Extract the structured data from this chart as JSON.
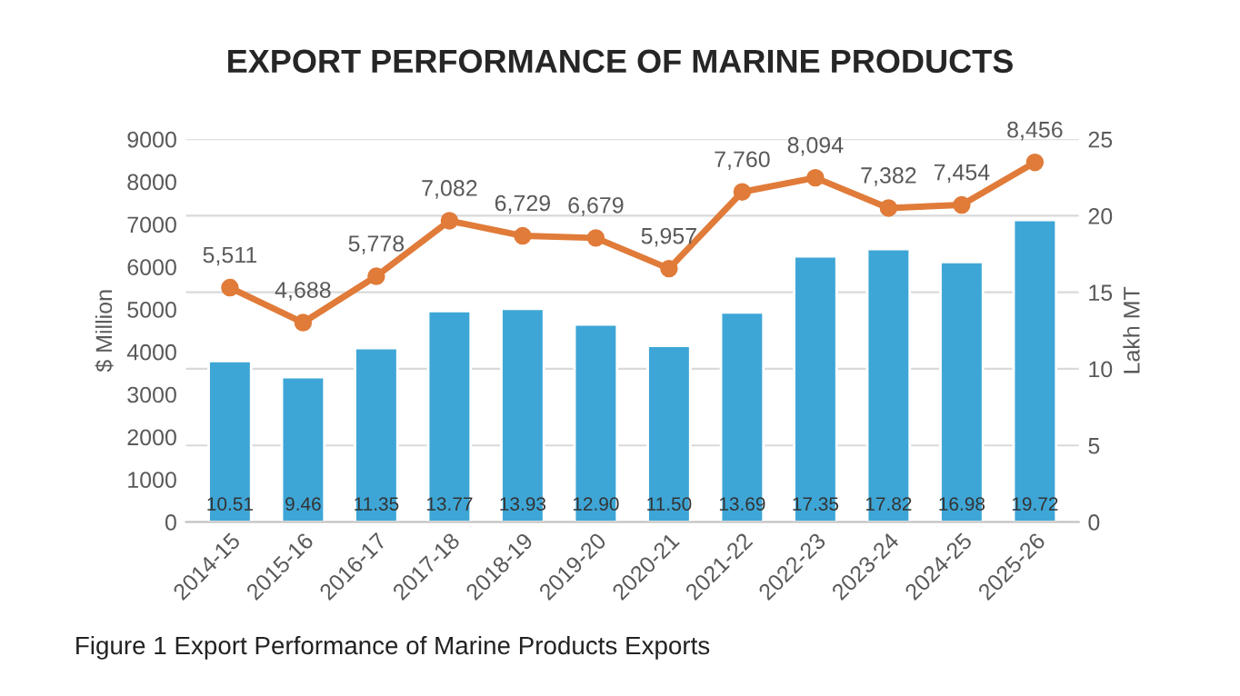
{
  "chart_data": {
    "type": "bar",
    "title": "EXPORT PERFORMANCE OF MARINE PRODUCTS",
    "categories": [
      "2014-15",
      "2015-16",
      "2016-17",
      "2017-18",
      "2018-19",
      "2019-20",
      "2020-21",
      "2021-22",
      "2022-23",
      "2023-24",
      "2024-25",
      "2025-26"
    ],
    "series": [
      {
        "axis": "y2",
        "color": "#3ea6d6",
        "values": [
          10.51,
          9.46,
          11.35,
          13.77,
          13.93,
          12.9,
          11.5,
          13.69,
          17.35,
          17.82,
          16.98,
          19.72
        ],
        "value_labels": [
          "10.51",
          "9.46",
          "11.35",
          "13.77",
          "13.93",
          "12.90",
          "11.50",
          "13.69",
          "17.35",
          "17.82",
          "16.98",
          "19.72"
        ]
      },
      {
        "type": "line",
        "axis": "y",
        "color": "#e07b39",
        "marker": "circle",
        "values": [
          5511,
          4688,
          5778,
          7082,
          6729,
          6679,
          5957,
          7760,
          8094,
          7382,
          7454,
          8456
        ],
        "value_labels": [
          "5,511",
          "4,688",
          "5,778",
          "7,082",
          "6,729",
          "6,679",
          "5,957",
          "7,760",
          "8,094",
          "7,382",
          "7,454",
          "8,456"
        ]
      }
    ],
    "ylabel": "$ Million",
    "y2label": "Lakh MT",
    "ylim": [
      0,
      9000
    ],
    "yticks": [
      0,
      1000,
      2000,
      3000,
      4000,
      5000,
      6000,
      7000,
      8000,
      9000
    ],
    "y2lim": [
      0,
      25
    ],
    "y2ticks": [
      0,
      5,
      10,
      15,
      20,
      25
    ],
    "grid": "y",
    "annotations": [
      "Figure 1 Export Performance of Marine Products Exports"
    ]
  }
}
